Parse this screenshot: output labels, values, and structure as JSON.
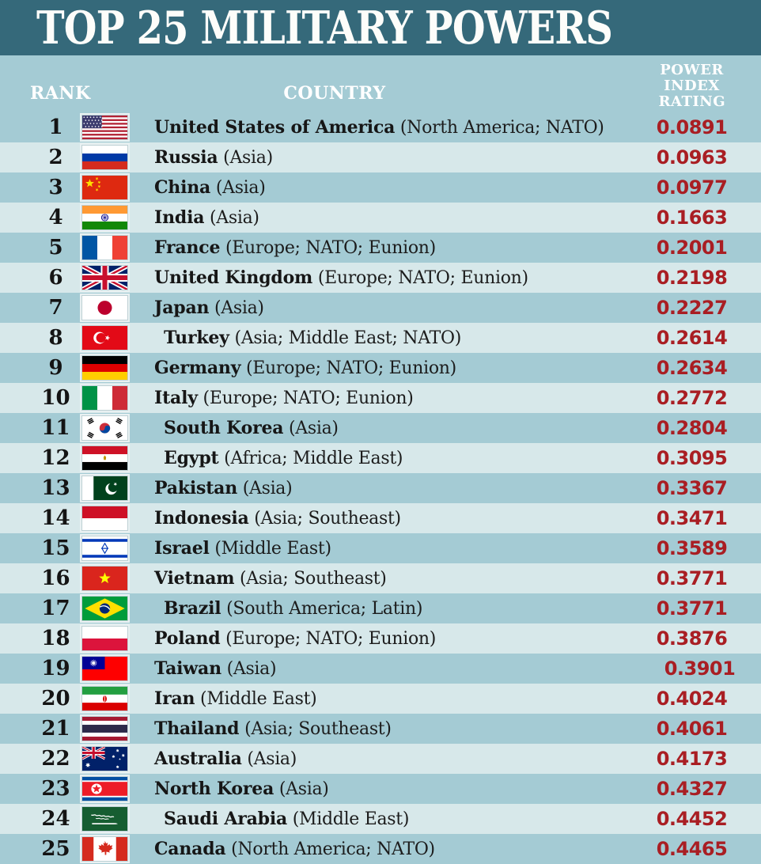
{
  "title": "TOP 25 MILITARY POWERS",
  "columns": {
    "rank": "RANK",
    "country": "COUNTRY",
    "rating": "POWER INDEX RATING"
  },
  "colors": {
    "header_bg": "#35697a",
    "band_bg": "#a4cbd4",
    "row_alt_bg": "#d7e8ea",
    "rating_red": "#a91e23",
    "text_black": "#161616",
    "header_text": "#ffffff"
  },
  "chart_data": {
    "type": "table",
    "title": "TOP 25 MILITARY POWERS",
    "columns": [
      "RANK",
      "COUNTRY",
      "POWER INDEX RATING"
    ],
    "rows": [
      {
        "rank": 1,
        "country": "United States of America",
        "region": "(North America; NATO)",
        "rating": "0.0891",
        "flag": "usa"
      },
      {
        "rank": 2,
        "country": "Russia",
        "region": "(Asia)",
        "rating": "0.0963",
        "flag": "russia"
      },
      {
        "rank": 3,
        "country": "China",
        "region": "(Asia)",
        "rating": "0.0977",
        "flag": "china"
      },
      {
        "rank": 4,
        "country": "India",
        "region": "(Asia)",
        "rating": "0.1663",
        "flag": "india"
      },
      {
        "rank": 5,
        "country": "France",
        "region": "(Europe; NATO; Eunion)",
        "rating": "0.2001",
        "flag": "france"
      },
      {
        "rank": 6,
        "country": "United Kingdom",
        "region": "(Europe; NATO; Eunion)",
        "rating": "0.2198",
        "flag": "uk"
      },
      {
        "rank": 7,
        "country": "Japan",
        "region": "(Asia)",
        "rating": "0.2227",
        "flag": "japan"
      },
      {
        "rank": 8,
        "country": "Turkey",
        "region": "(Asia; Middle East; NATO)",
        "rating": "0.2614",
        "flag": "turkey",
        "indent": true
      },
      {
        "rank": 9,
        "country": "Germany",
        "region": "(Europe; NATO; Eunion)",
        "rating": "0.2634",
        "flag": "germany"
      },
      {
        "rank": 10,
        "country": "Italy",
        "region": "(Europe; NATO; Eunion)",
        "rating": "0.2772",
        "flag": "italy"
      },
      {
        "rank": 11,
        "country": "South Korea",
        "region": "(Asia)",
        "rating": "0.2804",
        "flag": "south-korea",
        "indent": true
      },
      {
        "rank": 12,
        "country": "Egypt",
        "region": "(Africa; Middle East)",
        "rating": "0.3095",
        "flag": "egypt",
        "indent": true
      },
      {
        "rank": 13,
        "country": "Pakistan",
        "region": "(Asia)",
        "rating": "0.3367",
        "flag": "pakistan"
      },
      {
        "rank": 14,
        "country": "Indonesia",
        "region": "(Asia; Southeast)",
        "rating": "0.3471",
        "flag": "indonesia"
      },
      {
        "rank": 15,
        "country": "Israel",
        "region": "(Middle East)",
        "rating": "0.3589",
        "flag": "israel"
      },
      {
        "rank": 16,
        "country": "Vietnam",
        "region": "(Asia; Southeast)",
        "rating": "0.3771",
        "flag": "vietnam"
      },
      {
        "rank": 17,
        "country": "Brazil",
        "region": "(South America; Latin)",
        "rating": "0.3771",
        "flag": "brazil",
        "indent": true
      },
      {
        "rank": 18,
        "country": "Poland",
        "region": "(Europe; NATO; Eunion)",
        "rating": "0.3876",
        "flag": "poland"
      },
      {
        "rank": 19,
        "country": "Taiwan",
        "region": "(Asia)",
        "rating": "0.3901",
        "flag": "taiwan",
        "rating_indent": true
      },
      {
        "rank": 20,
        "country": "Iran",
        "region": "(Middle East)",
        "rating": "0.4024",
        "flag": "iran"
      },
      {
        "rank": 21,
        "country": "Thailand",
        "region": "(Asia; Southeast)",
        "rating": "0.4061",
        "flag": "thailand"
      },
      {
        "rank": 22,
        "country": "Australia",
        "region": "(Asia)",
        "rating": "0.4173",
        "flag": "australia"
      },
      {
        "rank": 23,
        "country": "North Korea",
        "region": "(Asia)",
        "rating": "0.4327",
        "flag": "north-korea"
      },
      {
        "rank": 24,
        "country": "Saudi Arabia",
        "region": "(Middle East)",
        "rating": "0.4452",
        "flag": "saudi-arabia",
        "indent": true
      },
      {
        "rank": 25,
        "country": "Canada",
        "region": "(North America; NATO)",
        "rating": "0.4465",
        "flag": "canada"
      }
    ]
  }
}
